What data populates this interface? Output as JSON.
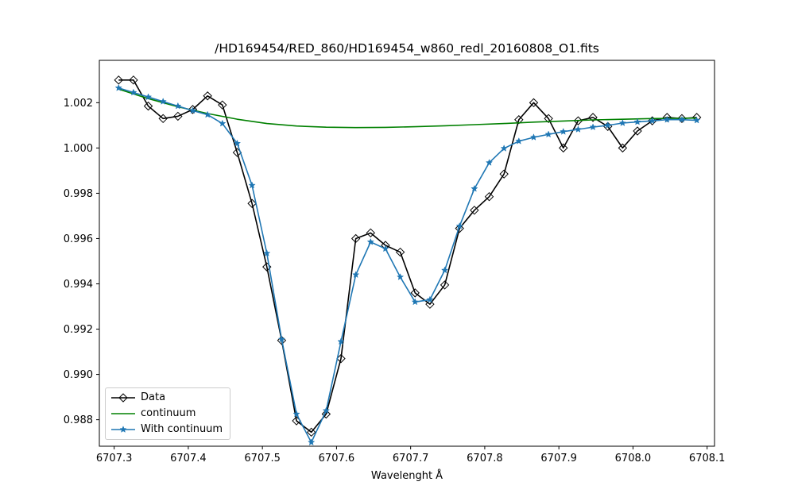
{
  "chart_data": {
    "type": "line",
    "title": "/HD169454/RED_860/HD169454_w860_redl_20160808_O1.fits",
    "xlabel": "Wavelenght Å",
    "ylabel": "",
    "xlim": [
      6707.28,
      6708.11
    ],
    "ylim": [
      0.98683,
      1.00387
    ],
    "xticks": [
      6707.3,
      6707.4,
      6707.5,
      6707.6,
      6707.7,
      6707.8,
      6707.9,
      6708.0,
      6708.1
    ],
    "xtick_labels": [
      "6707.3",
      "6707.4",
      "6707.5",
      "6707.6",
      "6707.7",
      "6707.8",
      "6707.9",
      "6708.0",
      "6708.1"
    ],
    "yticks": [
      0.988,
      0.99,
      0.992,
      0.994,
      0.996,
      0.998,
      1.0,
      1.002
    ],
    "ytick_labels": [
      "0.988",
      "0.990",
      "0.992",
      "0.994",
      "0.996",
      "0.998",
      "1.000",
      "1.002"
    ],
    "grid": false,
    "legend_position": "lower-left",
    "series": [
      {
        "name": "Data",
        "color": "#000000",
        "marker": "diamond-open",
        "x": [
          6707.306,
          6707.326,
          6707.346,
          6707.366,
          6707.386,
          6707.406,
          6707.426,
          6707.446,
          6707.466,
          6707.486,
          6707.506,
          6707.526,
          6707.546,
          6707.566,
          6707.586,
          6707.606,
          6707.626,
          6707.646,
          6707.666,
          6707.686,
          6707.706,
          6707.726,
          6707.746,
          6707.766,
          6707.786,
          6707.806,
          6707.826,
          6707.846,
          6707.866,
          6707.886,
          6707.906,
          6707.926,
          6707.946,
          6707.966,
          6707.986,
          6708.006,
          6708.026,
          6708.046,
          6708.066,
          6708.086
        ],
        "values": [
          1.003,
          1.003,
          1.00185,
          1.0013,
          1.0014,
          1.0017,
          1.0023,
          1.0019,
          0.9998,
          0.99755,
          0.99475,
          0.9915,
          0.98795,
          0.98745,
          0.98825,
          0.9907,
          0.996,
          0.99625,
          0.9957,
          0.9954,
          0.9936,
          0.9931,
          0.99395,
          0.99645,
          0.99725,
          0.99785,
          0.99885,
          1.00125,
          1.002,
          1.0013,
          1.0,
          1.0012,
          1.00135,
          1.00095,
          1.0,
          1.00075,
          1.0012,
          1.00135,
          1.0013,
          1.00135
        ]
      },
      {
        "name": "continuum",
        "color": "#008000",
        "marker": "none",
        "x": [
          6707.306,
          6707.346,
          6707.386,
          6707.426,
          6707.466,
          6707.506,
          6707.546,
          6707.586,
          6707.626,
          6707.666,
          6707.706,
          6707.746,
          6707.786,
          6707.826,
          6707.866,
          6707.906,
          6707.946,
          6707.986,
          6708.026,
          6708.066,
          6708.086
        ],
        "values": [
          1.0026,
          1.00218,
          1.00182,
          1.00152,
          1.00127,
          1.00108,
          1.00097,
          1.00092,
          1.0009,
          1.00091,
          1.00094,
          1.00098,
          1.00103,
          1.00108,
          1.00114,
          1.00119,
          1.00124,
          1.00127,
          1.0013,
          1.00131,
          1.00132
        ]
      },
      {
        "name": "With continuum",
        "color": "#1f77b4",
        "marker": "star",
        "x": [
          6707.306,
          6707.326,
          6707.346,
          6707.366,
          6707.386,
          6707.406,
          6707.426,
          6707.446,
          6707.466,
          6707.486,
          6707.506,
          6707.526,
          6707.546,
          6707.566,
          6707.586,
          6707.606,
          6707.626,
          6707.646,
          6707.666,
          6707.686,
          6707.706,
          6707.726,
          6707.746,
          6707.766,
          6707.786,
          6707.806,
          6707.826,
          6707.846,
          6707.866,
          6707.886,
          6707.906,
          6707.926,
          6707.946,
          6707.966,
          6707.986,
          6708.006,
          6708.026,
          6708.046,
          6708.066,
          6708.086
        ],
        "values": [
          1.00265,
          1.00245,
          1.00225,
          1.00205,
          1.00185,
          1.00165,
          1.00147,
          1.00108,
          1.0002,
          0.99835,
          0.99535,
          0.99155,
          0.98825,
          0.987,
          0.9884,
          0.99145,
          0.9944,
          0.99585,
          0.99555,
          0.9943,
          0.9932,
          0.9933,
          0.9946,
          0.99655,
          0.9982,
          0.99935,
          0.99998,
          1.0003,
          1.00047,
          1.0006,
          1.00072,
          1.00082,
          1.00092,
          1.001,
          1.0011,
          1.00115,
          1.0012,
          1.00125,
          1.00125,
          1.00122
        ]
      }
    ]
  }
}
